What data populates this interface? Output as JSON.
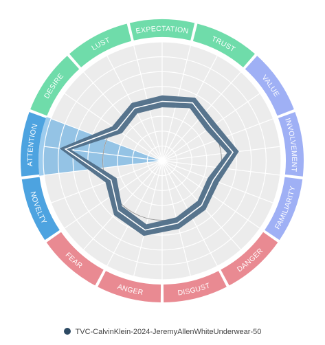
{
  "chart_data": {
    "type": "radar",
    "title": "",
    "categories": [
      "EXPECTATION",
      "TRUST",
      "VALUE",
      "INVOLVEMENT",
      "FAMILIARITY",
      "DANGER",
      "DISGUST",
      "ANGER",
      "FEAR",
      "NOVELTY",
      "ATTENTION",
      "DESIRE",
      "LUST"
    ],
    "category_groups": [
      {
        "color": "#6fdcaa",
        "categories": [
          "DESIRE",
          "LUST",
          "EXPECTATION",
          "TRUST"
        ]
      },
      {
        "color": "#9fb0f5",
        "categories": [
          "VALUE",
          "INVOLVEMENT",
          "FAMILIARITY"
        ]
      },
      {
        "color": "#e98a92",
        "categories": [
          "DANGER",
          "DISGUST",
          "ANGER",
          "FEAR"
        ]
      },
      {
        "color": "#4da3e0",
        "categories": [
          "NOVELTY",
          "ATTENTION"
        ]
      }
    ],
    "highlighted_category": "ATTENTION",
    "rlim": [
      0,
      1
    ],
    "grid": true,
    "reference_ring": 0.5,
    "series": [
      {
        "color": "#4f6e88",
        "values": [
          0.5,
          0.55,
          0.5,
          0.6,
          0.46,
          0.5,
          0.54,
          0.6,
          0.56,
          0.46,
          0.82,
          0.46,
          0.5
        ],
        "band_half_width": 0.05
      }
    ],
    "legend": {
      "position": "bottom",
      "label": "TVC-CalvinKlein-2024-JeremyAllenWhiteUnderwear-50",
      "color": "#2d4a63"
    }
  }
}
